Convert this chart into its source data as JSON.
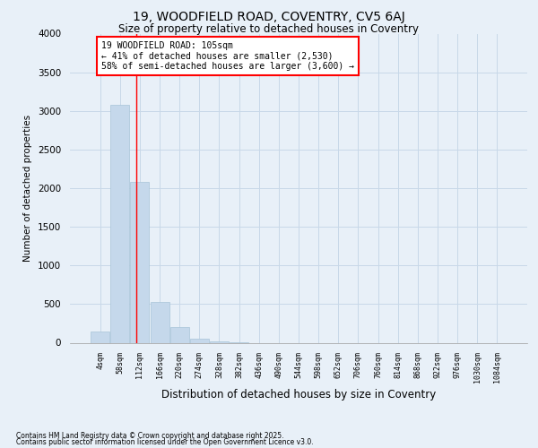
{
  "title1": "19, WOODFIELD ROAD, COVENTRY, CV5 6AJ",
  "title2": "Size of property relative to detached houses in Coventry",
  "xlabel": "Distribution of detached houses by size in Coventry",
  "ylabel": "Number of detached properties",
  "categories": [
    "4sqm",
    "58sqm",
    "112sqm",
    "166sqm",
    "220sqm",
    "274sqm",
    "328sqm",
    "382sqm",
    "436sqm",
    "490sqm",
    "544sqm",
    "598sqm",
    "652sqm",
    "706sqm",
    "760sqm",
    "814sqm",
    "868sqm",
    "922sqm",
    "976sqm",
    "1030sqm",
    "1084sqm"
  ],
  "values": [
    150,
    3080,
    2080,
    530,
    200,
    55,
    20,
    5,
    0,
    0,
    0,
    0,
    0,
    0,
    0,
    0,
    0,
    0,
    0,
    0,
    0
  ],
  "bar_color": "#c5d8eb",
  "bar_edge_color": "#a8c4d8",
  "grid_color": "#c8d8e8",
  "background_color": "#e8f0f8",
  "axes_background": "#e8f0f8",
  "ylim": [
    0,
    4000
  ],
  "yticks": [
    0,
    500,
    1000,
    1500,
    2000,
    2500,
    3000,
    3500,
    4000
  ],
  "red_line_x": 1.82,
  "annotation_text": "19 WOODFIELD ROAD: 105sqm\n← 41% of detached houses are smaller (2,530)\n58% of semi-detached houses are larger (3,600) →",
  "footer1": "Contains HM Land Registry data © Crown copyright and database right 2025.",
  "footer2": "Contains public sector information licensed under the Open Government Licence v3.0."
}
